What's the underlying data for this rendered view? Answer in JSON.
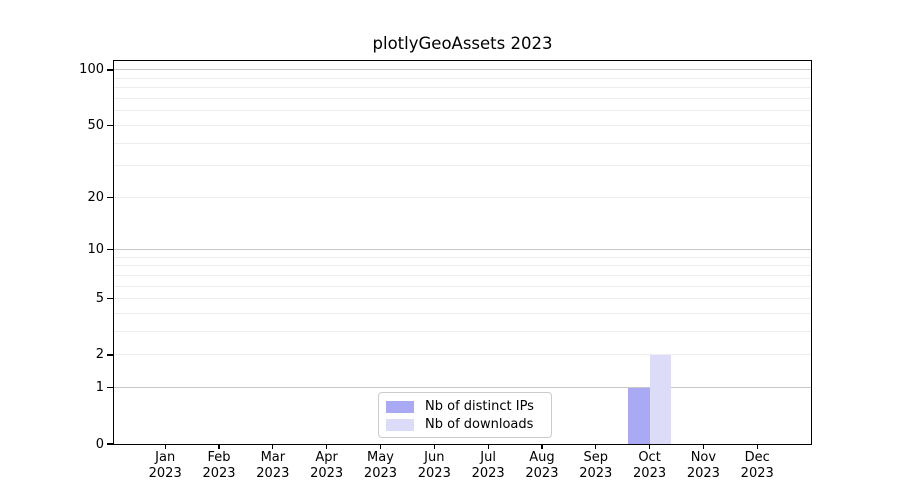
{
  "chart_data": {
    "type": "bar",
    "title": "plotlyGeoAssets 2023",
    "x": {
      "categories": [
        "Jan",
        "Feb",
        "Mar",
        "Apr",
        "May",
        "Jun",
        "Jul",
        "Aug",
        "Sep",
        "Oct",
        "Nov",
        "Dec"
      ],
      "year_label": "2023"
    },
    "series": [
      {
        "name": "Nb of distinct IPs",
        "color": "#a9a9f4",
        "values": [
          0,
          0,
          0,
          0,
          0,
          0,
          0,
          0,
          0,
          1,
          0,
          0
        ]
      },
      {
        "name": "Nb of downloads",
        "color": "#dcdcf9",
        "values": [
          0,
          0,
          0,
          0,
          0,
          0,
          0,
          0,
          0,
          2,
          0,
          0
        ]
      }
    ],
    "y_axis": {
      "scale": "log1p",
      "tick_values": [
        0,
        1,
        2,
        5,
        10,
        20,
        50,
        100
      ],
      "tick_labels": [
        "0",
        "1",
        "2",
        "5",
        "10",
        "20",
        "50",
        "100"
      ],
      "major_grid_values": [
        1,
        10,
        100
      ],
      "minor_grid_values": [
        2,
        3,
        4,
        5,
        6,
        7,
        8,
        9,
        20,
        30,
        40,
        50,
        60,
        70,
        80,
        90
      ],
      "range": [
        0,
        112
      ]
    },
    "legend": {
      "position": "lower center",
      "entries": [
        "Nb of distinct IPs",
        "Nb of downloads"
      ]
    },
    "colors": {
      "grid_major": "#c8c8c8",
      "grid_minor": "#ededed",
      "axis": "#000000",
      "background": "#ffffff"
    }
  }
}
